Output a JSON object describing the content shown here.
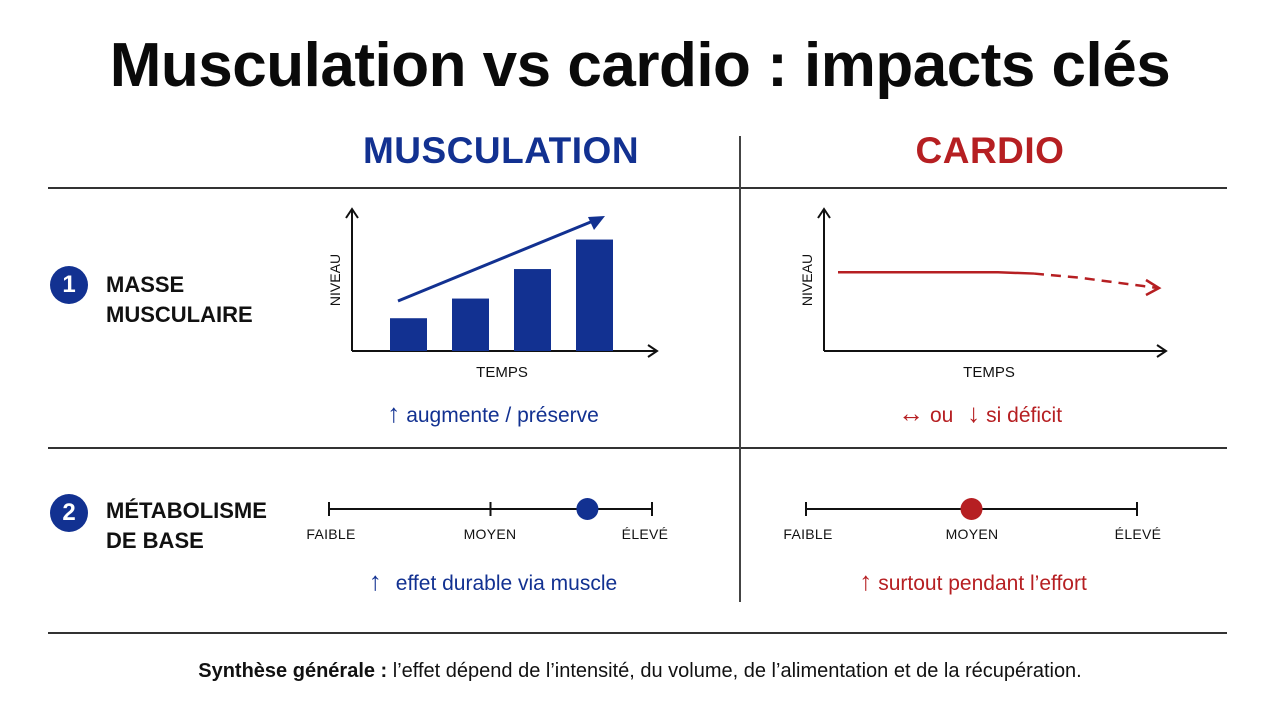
{
  "title": "Musculation vs cardio : impacts clés",
  "columns": {
    "muscu": "MUSCULATION",
    "cardio": "CARDIO"
  },
  "rows": [
    {
      "number": "1",
      "label_line1": "MASSE",
      "label_line2": "MUSCULAIRE"
    },
    {
      "number": "2",
      "label_line1": "MÉTABOLISME",
      "label_line2": "DE BASE"
    }
  ],
  "chart_data": [
    {
      "type": "bar",
      "ylabel": "NIVEAU",
      "xlabel": "TEMPS",
      "values": [
        1,
        1.6,
        2.5,
        3.4
      ],
      "trend": "increasing"
    },
    {
      "type": "line",
      "ylabel": "NIVEAU",
      "xlabel": "TEMPS",
      "x": [
        0,
        1,
        2,
        3,
        4
      ],
      "values": [
        3,
        3,
        3,
        2.8,
        2.4
      ],
      "dashed_from_index": 2
    }
  ],
  "captions": {
    "muscu_masse_arrow": "↑",
    "muscu_masse": "augmente / préserve",
    "cardio_masse_arrow1": "↔",
    "cardio_masse_ou": "ou",
    "cardio_masse_arrow2": "↓",
    "cardio_masse": "si déficit",
    "muscu_meta_arrow": "↑",
    "muscu_meta": "effet durable via muscle",
    "cardio_meta_arrow": "↑",
    "cardio_meta": "surtout pendant l’effort"
  },
  "scales": {
    "labels": [
      "FAIBLE",
      "MOYEN",
      "ÉLEVÉ"
    ],
    "muscu_level": 0.8,
    "cardio_level": 0.5
  },
  "footer": {
    "bold": "Synthèse générale :",
    "text": " l’effet dépend de l’intensité, du volume, de l’alimentation et de la récupération."
  },
  "colors": {
    "blue": "#123191",
    "red": "#b61f22",
    "black": "#111111"
  }
}
